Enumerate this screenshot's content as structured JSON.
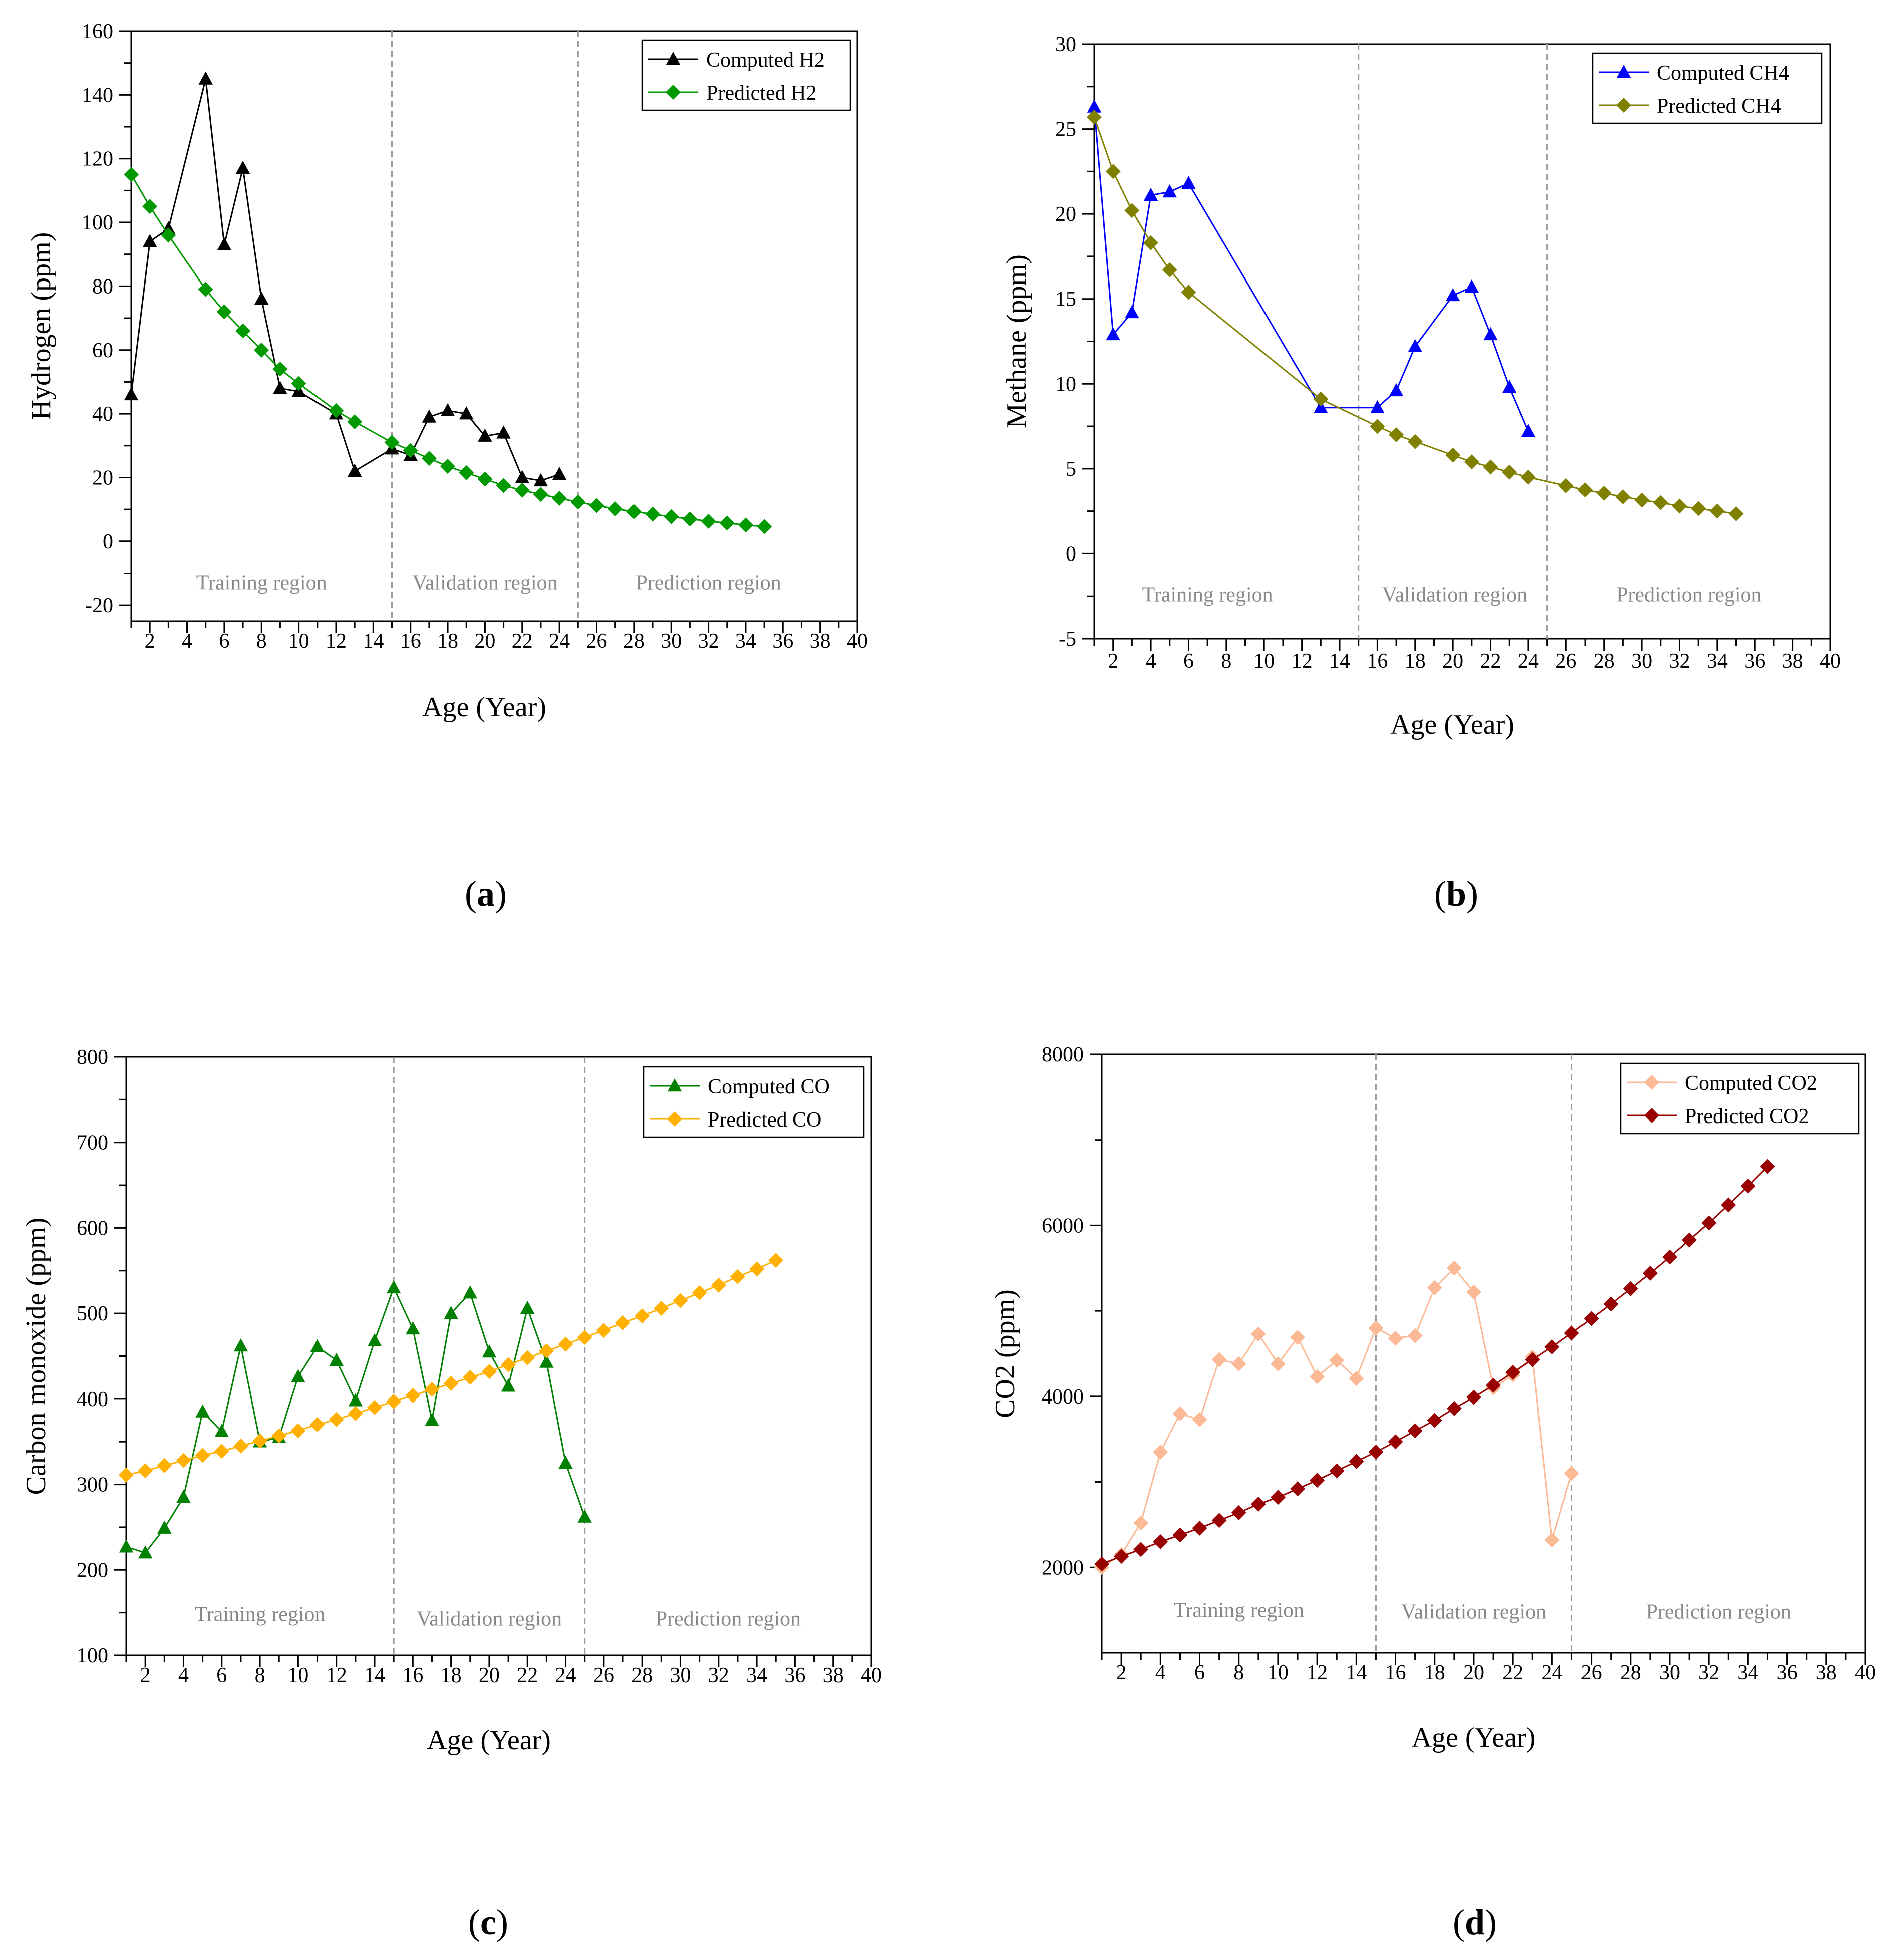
{
  "subfigure_labels": [
    "a",
    "b",
    "c",
    "d"
  ],
  "chart_data": [
    {
      "id": "a",
      "type": "line",
      "xlabel": "Age (Year)",
      "ylabel": "Hydrogen (ppm)",
      "xlim": [
        1,
        40
      ],
      "ylim": [
        -25,
        160
      ],
      "xticks": [
        2,
        4,
        6,
        8,
        10,
        12,
        14,
        16,
        18,
        20,
        22,
        24,
        26,
        28,
        30,
        32,
        34,
        36,
        38,
        40
      ],
      "yticks": [
        -20,
        0,
        20,
        40,
        60,
        80,
        100,
        120,
        140,
        160
      ],
      "region_boundaries": [
        15,
        25
      ],
      "regions": [
        {
          "label": "Training region",
          "x": 8,
          "y": -15
        },
        {
          "label": "Validation region",
          "x": 20,
          "y": -15
        },
        {
          "label": "Prediction region",
          "x": 32,
          "y": -15
        }
      ],
      "legend": [
        "Computed H2",
        "Predicted H2"
      ],
      "series": [
        {
          "name": "Computed H2",
          "color": "#000000",
          "marker": "triangle",
          "x": [
            1,
            2,
            3,
            5,
            6,
            7,
            8,
            9,
            10,
            12,
            13,
            15,
            16,
            17,
            18,
            19,
            20,
            21,
            22,
            23,
            24
          ],
          "y": [
            46,
            94,
            98,
            145,
            93,
            117,
            76,
            48,
            47,
            40,
            22,
            29,
            27,
            39,
            41,
            40,
            33,
            34,
            20,
            19,
            21
          ]
        },
        {
          "name": "Predicted H2",
          "color": "#009900",
          "marker": "diamond",
          "x": [
            1,
            2,
            3,
            5,
            6,
            7,
            8,
            9,
            10,
            12,
            13,
            15,
            16,
            17,
            18,
            19,
            20,
            21,
            22,
            23,
            24,
            25,
            26,
            27,
            28,
            29,
            30,
            31,
            32,
            33,
            34,
            35
          ],
          "y": [
            115,
            105,
            96,
            79,
            72,
            66,
            60,
            54,
            49.5,
            41,
            37.5,
            31,
            28.5,
            26,
            23.5,
            21.5,
            19.5,
            17.5,
            16,
            14.7,
            13.5,
            12.3,
            11.2,
            10.2,
            9.3,
            8.5,
            7.7,
            7,
            6.3,
            5.7,
            5.1,
            4.6
          ]
        }
      ]
    },
    {
      "id": "b",
      "type": "line",
      "xlabel": "Age (Year)",
      "ylabel": "Methane (ppm)",
      "xlim": [
        1,
        40
      ],
      "ylim": [
        -5,
        30
      ],
      "xticks": [
        2,
        4,
        6,
        8,
        10,
        12,
        14,
        16,
        18,
        20,
        22,
        24,
        26,
        28,
        30,
        32,
        34,
        36,
        38,
        40
      ],
      "yticks": [
        -5,
        0,
        5,
        10,
        15,
        20,
        25,
        30
      ],
      "region_boundaries": [
        15,
        25
      ],
      "regions": [
        {
          "label": "Training region",
          "x": 7,
          "y": -2.8
        },
        {
          "label": "Validation region",
          "x": 20.1,
          "y": -2.8
        },
        {
          "label": "Prediction region",
          "x": 32.5,
          "y": -2.8
        }
      ],
      "legend": [
        "Computed CH4",
        "Predicted CH4"
      ],
      "series": [
        {
          "name": "Computed CH4",
          "color": "#0000ff",
          "marker": "triangle",
          "x": [
            1,
            2,
            3,
            4,
            5,
            6,
            13,
            16,
            17,
            18,
            20,
            21,
            22,
            23,
            24
          ],
          "y": [
            26.3,
            12.9,
            14.2,
            21.1,
            21.3,
            21.8,
            8.6,
            8.6,
            9.6,
            12.2,
            15.2,
            15.7,
            12.9,
            9.8,
            7.2
          ]
        },
        {
          "name": "Predicted CH4",
          "color": "#808000",
          "marker": "diamond",
          "x": [
            1,
            2,
            3,
            4,
            5,
            6,
            13,
            16,
            17,
            18,
            20,
            21,
            22,
            23,
            24,
            26,
            27,
            28,
            29,
            30,
            31,
            32,
            33,
            34,
            35
          ],
          "y": [
            25.7,
            22.5,
            20.2,
            18.3,
            16.7,
            15.4,
            9.1,
            7.5,
            7,
            6.6,
            5.8,
            5.4,
            5.1,
            4.8,
            4.5,
            4,
            3.75,
            3.55,
            3.35,
            3.15,
            3,
            2.8,
            2.65,
            2.5,
            2.35
          ]
        }
      ]
    },
    {
      "id": "c",
      "type": "line",
      "xlabel": "Age (Year)",
      "ylabel": "Carbon monoxide (ppm)",
      "xlim": [
        1,
        40
      ],
      "ylim": [
        100,
        800
      ],
      "xticks": [
        2,
        4,
        6,
        8,
        10,
        12,
        14,
        16,
        18,
        20,
        22,
        24,
        26,
        28,
        30,
        32,
        34,
        36,
        38,
        40
      ],
      "yticks": [
        100,
        200,
        300,
        400,
        500,
        600,
        700,
        800
      ],
      "region_boundaries": [
        15,
        25
      ],
      "regions": [
        {
          "label": "Training region",
          "x": 8,
          "y": 140
        },
        {
          "label": "Validation region",
          "x": 20,
          "y": 135
        },
        {
          "label": "Prediction region",
          "x": 32.5,
          "y": 135
        }
      ],
      "legend": [
        "Computed CO",
        "Predicted CO"
      ],
      "series": [
        {
          "name": "Computed CO",
          "color": "#008000",
          "marker": "triangle",
          "x": [
            1,
            2,
            3,
            4,
            5,
            6,
            7,
            8,
            9,
            10,
            11,
            12,
            13,
            14,
            15,
            16,
            17,
            18,
            19,
            20,
            21,
            22,
            23,
            24,
            25
          ],
          "y": [
            227,
            220,
            249,
            285,
            385,
            362,
            462,
            350,
            355,
            426,
            461,
            445,
            398,
            468,
            530,
            482,
            375,
            500,
            524,
            455,
            415,
            506,
            443,
            325,
            262
          ]
        },
        {
          "name": "Predicted CO",
          "color": "#ffb000",
          "marker": "diamond",
          "x": [
            1,
            2,
            3,
            4,
            5,
            6,
            7,
            8,
            9,
            10,
            11,
            12,
            13,
            14,
            15,
            16,
            17,
            18,
            19,
            20,
            21,
            22,
            23,
            24,
            25,
            26,
            27,
            28,
            29,
            30,
            31,
            32,
            33,
            34,
            35
          ],
          "y": [
            311,
            316,
            322,
            328,
            334,
            339,
            345,
            351,
            357,
            363,
            370,
            376,
            383,
            390,
            397,
            404,
            411,
            418,
            425,
            432,
            440,
            448,
            456,
            464,
            472,
            480,
            489,
            497,
            506,
            515,
            524,
            533,
            543,
            552,
            562
          ]
        }
      ]
    },
    {
      "id": "d",
      "type": "line",
      "xlabel": "Age (Year)",
      "ylabel": "CO2 (ppm)",
      "xlim": [
        1,
        40
      ],
      "ylim": [
        1000,
        8000
      ],
      "xticks": [
        2,
        4,
        6,
        8,
        10,
        12,
        14,
        16,
        18,
        20,
        22,
        24,
        26,
        28,
        30,
        32,
        34,
        36,
        38,
        40
      ],
      "yticks": [
        2000,
        4000,
        6000,
        8000
      ],
      "region_boundaries": [
        15,
        25
      ],
      "regions": [
        {
          "label": "Training region",
          "x": 8,
          "y": 1420
        },
        {
          "label": "Validation region",
          "x": 20,
          "y": 1400
        },
        {
          "label": "Prediction region",
          "x": 32.5,
          "y": 1400
        }
      ],
      "legend": [
        "Computed CO2",
        "Predicted CO2"
      ],
      "series": [
        {
          "name": "Computed CO2",
          "color": "#fbb995",
          "marker": "diamond",
          "x": [
            1,
            2,
            3,
            4,
            5,
            6,
            7,
            8,
            9,
            10,
            11,
            12,
            13,
            14,
            15,
            16,
            17,
            18,
            19,
            20,
            21,
            22,
            23,
            24,
            25
          ],
          "y": [
            2000,
            2150,
            2520,
            3350,
            3800,
            3730,
            4430,
            4380,
            4730,
            4380,
            4690,
            4230,
            4420,
            4210,
            4800,
            4680,
            4710,
            5270,
            5500,
            5220,
            4100,
            4250,
            4460,
            2320,
            3100
          ]
        },
        {
          "name": "Predicted CO2",
          "color": "#990000",
          "marker": "diamond",
          "x": [
            1,
            2,
            3,
            4,
            5,
            6,
            7,
            8,
            9,
            10,
            11,
            12,
            13,
            14,
            15,
            16,
            17,
            18,
            19,
            20,
            21,
            22,
            23,
            24,
            25,
            26,
            27,
            28,
            29,
            30,
            31,
            32,
            33,
            34,
            35
          ],
          "y": [
            2040,
            2130,
            2210,
            2300,
            2380,
            2460,
            2550,
            2640,
            2740,
            2820,
            2920,
            3020,
            3130,
            3240,
            3350,
            3470,
            3600,
            3720,
            3860,
            3990,
            4130,
            4280,
            4430,
            4580,
            4740,
            4910,
            5080,
            5260,
            5440,
            5630,
            5830,
            6030,
            6240,
            6460,
            6690
          ]
        }
      ]
    }
  ]
}
